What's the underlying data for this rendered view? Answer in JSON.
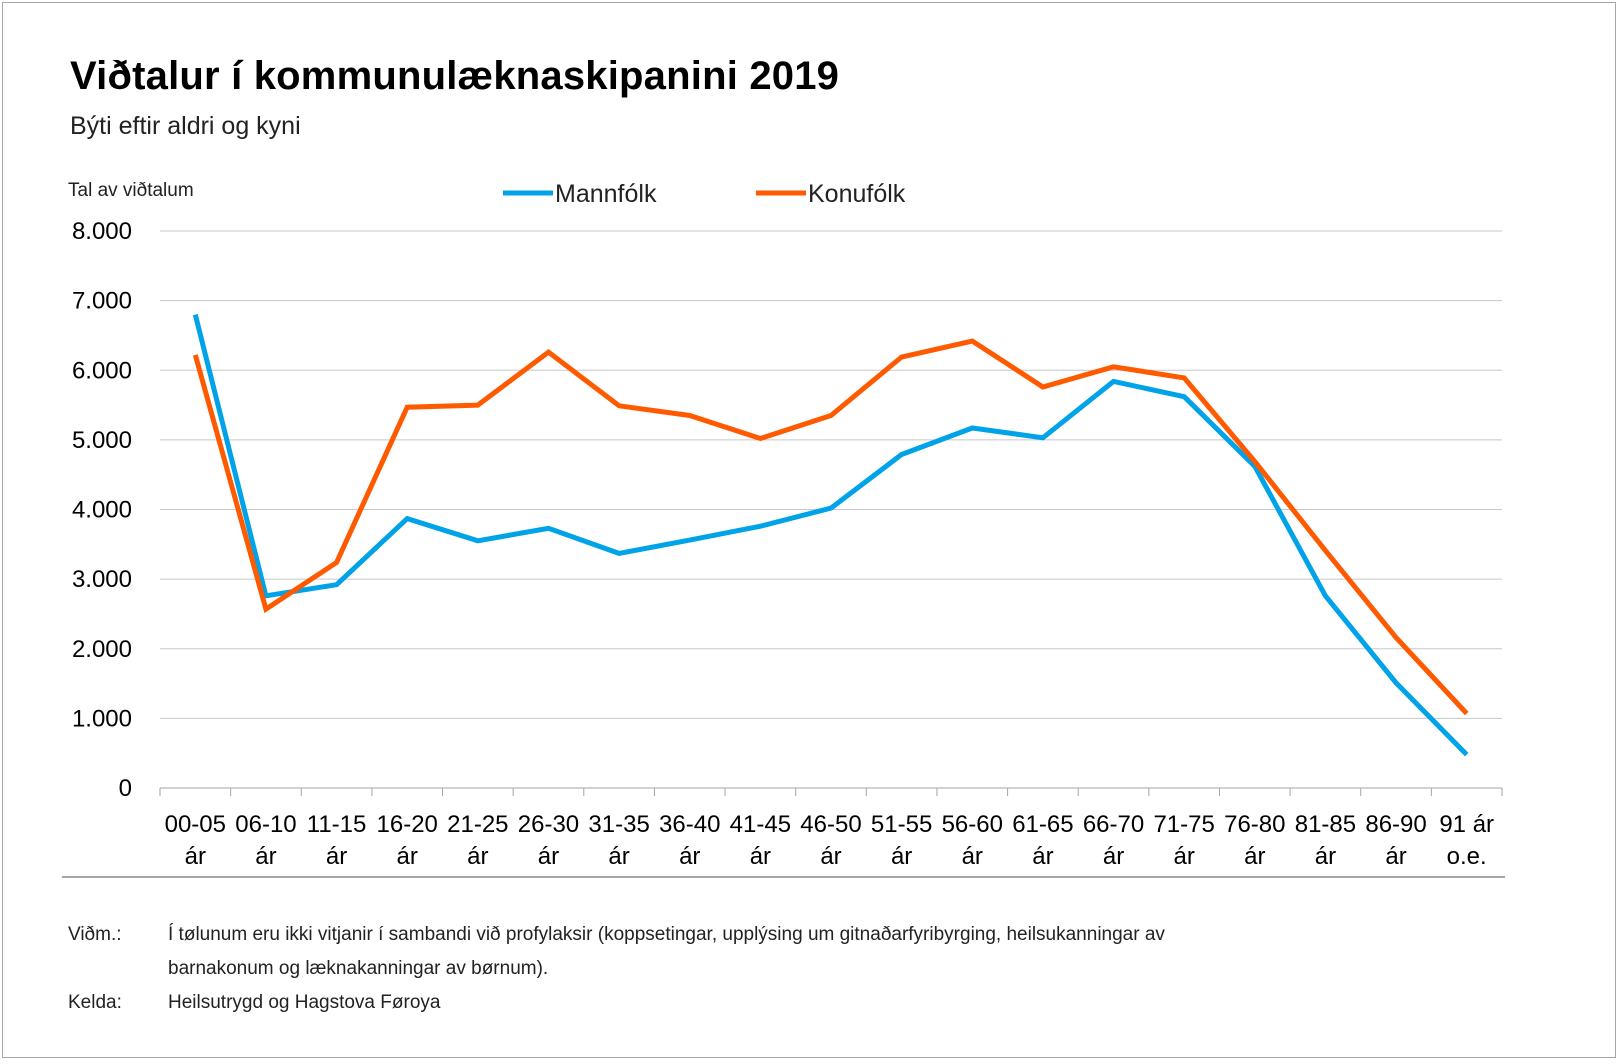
{
  "title": "Viðtalur í kommunulæknaskipanini 2019",
  "subtitle": "Býti eftir aldri og kyni",
  "notes": [
    {
      "key": "Viðm.:",
      "text": "Í tølunum eru ikki vitjanir í sambandi við profylaksir (koppsetingar, upplýsing um gitnaðarfyribyrging, heilsukanningar av barnakonum og læknakanningar av børnum)."
    },
    {
      "key": "Kelda:",
      "text": "Heilsutrygd og Hagstova Føroya"
    }
  ],
  "chart_data": {
    "type": "line",
    "title": "Viðtalur í kommunulæknaskipanini 2019",
    "subtitle": "Býti eftir aldri og kyni",
    "ylabel": "Tal av viðtalum",
    "xlabel": "",
    "ylim": [
      0,
      8000
    ],
    "yticks": [
      0,
      1000,
      2000,
      3000,
      4000,
      5000,
      6000,
      7000,
      8000
    ],
    "ytick_labels": [
      "0",
      "1.000",
      "2.000",
      "3.000",
      "4.000",
      "5.000",
      "6.000",
      "7.000",
      "8.000"
    ],
    "grid": true,
    "legend_position": "top-center",
    "categories": [
      [
        "00-05",
        "ár"
      ],
      [
        "06-10",
        "ár"
      ],
      [
        "11-15",
        "ár"
      ],
      [
        "16-20",
        "ár"
      ],
      [
        "21-25",
        "ár"
      ],
      [
        "26-30",
        "ár"
      ],
      [
        "31-35",
        "ár"
      ],
      [
        "36-40",
        "ár"
      ],
      [
        "41-45",
        "ár"
      ],
      [
        "46-50",
        "ár"
      ],
      [
        "51-55",
        "ár"
      ],
      [
        "56-60",
        "ár"
      ],
      [
        "61-65",
        "ár"
      ],
      [
        "66-70",
        "ár"
      ],
      [
        "71-75",
        "ár"
      ],
      [
        "76-80",
        "ár"
      ],
      [
        "81-85",
        "ár"
      ],
      [
        "86-90",
        "ár"
      ],
      [
        "91 ár",
        "o.e."
      ]
    ],
    "series": [
      {
        "name": "Mannfólk",
        "color": "#00a3e8",
        "values": [
          6800,
          2760,
          2920,
          3870,
          3550,
          3730,
          3370,
          3560,
          3760,
          4020,
          4790,
          5170,
          5030,
          5840,
          5620,
          4620,
          2760,
          1510,
          480
        ]
      },
      {
        "name": "Konufólk",
        "color": "#ff5a00",
        "values": [
          6220,
          2570,
          3240,
          5470,
          5500,
          6260,
          5490,
          5350,
          5020,
          5350,
          6190,
          6420,
          5760,
          6050,
          5890,
          4690,
          3410,
          2160,
          1070
        ]
      }
    ]
  }
}
